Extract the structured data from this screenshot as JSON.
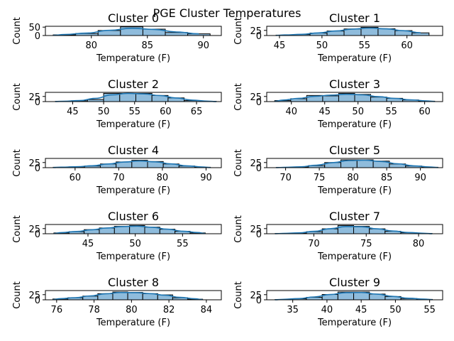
{
  "chart_data": {
    "type": "histogram-grid",
    "title": "PGE Cluster Temperatures",
    "xlabel": "Temperature (F)",
    "ylabel": "Count",
    "colors": {
      "bar": "#8fbcdc",
      "edge": "#000000",
      "kde": "#1f77b4"
    },
    "panels": [
      {
        "title": "Cluster 0",
        "xlim": [
          75.9,
          91.6
        ],
        "ylim": [
          0,
          55
        ],
        "xticks": [
          80,
          85,
          90
        ],
        "yticks": [
          0,
          50
        ],
        "bins": [
          76.6,
          78.6,
          80.6,
          82.6,
          84.6,
          86.6,
          88.6,
          90.6
        ],
        "counts": [
          4,
          12,
          30,
          52,
          38,
          18,
          10,
          3
        ]
      },
      {
        "title": "Cluster 1",
        "xlim": [
          43.5,
          64.2
        ],
        "ylim": [
          0,
          45
        ],
        "xticks": [
          45,
          50,
          55,
          60
        ],
        "yticks": [
          0,
          25
        ],
        "bins": [
          44.6,
          46.6,
          48.6,
          50.6,
          52.6,
          54.6,
          56.6,
          58.6,
          60.6,
          62.6
        ],
        "counts": [
          2,
          5,
          12,
          22,
          32,
          40,
          33,
          24,
          13,
          5
        ]
      },
      {
        "title": "Cluster 2",
        "xlim": [
          40.6,
          69.0
        ],
        "ylim": [
          0,
          45
        ],
        "xticks": [
          45,
          50,
          55,
          60,
          65
        ],
        "yticks": [
          0,
          25
        ],
        "bins": [
          42.2,
          44.8,
          47.4,
          50.0,
          52.6,
          55.2,
          57.8,
          60.4,
          63.0,
          65.6,
          68.2
        ],
        "counts": [
          1,
          4,
          10,
          40,
          40,
          40,
          30,
          18,
          5,
          1
        ]
      },
      {
        "title": "Cluster 3",
        "xlim": [
          36.3,
          62.7
        ],
        "ylim": [
          0,
          45
        ],
        "xticks": [
          40,
          45,
          50,
          55,
          60
        ],
        "yticks": [
          0,
          25
        ],
        "bins": [
          37.5,
          39.9,
          42.3,
          44.7,
          47.1,
          49.5,
          51.9,
          54.3,
          56.7,
          59.1,
          61.5
        ],
        "counts": [
          5,
          14,
          30,
          28,
          40,
          35,
          22,
          16,
          8,
          2
        ]
      },
      {
        "title": "Cluster 4",
        "xlim": [
          53.2,
          93.5
        ],
        "ylim": [
          0,
          45
        ],
        "xticks": [
          60,
          70,
          80,
          90
        ],
        "yticks": [
          0,
          25
        ],
        "bins": [
          55.0,
          58.6,
          62.2,
          65.8,
          69.4,
          73.0,
          76.6,
          80.2,
          83.8,
          87.4,
          91.0
        ],
        "counts": [
          2,
          4,
          8,
          18,
          28,
          36,
          30,
          18,
          8,
          2
        ]
      },
      {
        "title": "Cluster 5",
        "xlim": [
          67.2,
          93.3
        ],
        "ylim": [
          0,
          45
        ],
        "xticks": [
          70,
          75,
          80,
          85,
          90
        ],
        "yticks": [
          0,
          25
        ],
        "bins": [
          68.6,
          71.0,
          73.4,
          75.8,
          78.2,
          80.6,
          83.0,
          85.4,
          87.8,
          90.2,
          92.6
        ],
        "counts": [
          1,
          3,
          10,
          25,
          38,
          38,
          32,
          18,
          8,
          2
        ]
      },
      {
        "title": "Cluster 6",
        "xlim": [
          40.5,
          59.1
        ],
        "ylim": [
          0,
          45
        ],
        "xticks": [
          45,
          50,
          55
        ],
        "yticks": [
          0,
          25
        ],
        "bins": [
          41.4,
          43.0,
          44.6,
          46.2,
          47.8,
          49.4,
          51.0,
          52.6,
          54.2,
          55.8,
          57.4
        ],
        "counts": [
          4,
          10,
          20,
          28,
          36,
          40,
          32,
          22,
          12,
          4
        ]
      },
      {
        "title": "Cluster 7",
        "xlim": [
          65.5,
          82.3
        ],
        "ylim": [
          0,
          45
        ],
        "xticks": [
          70,
          75,
          80
        ],
        "yticks": [
          0,
          25
        ],
        "bins": [
          66.3,
          67.8,
          69.3,
          70.8,
          72.3,
          73.8,
          75.3,
          76.8,
          78.3,
          79.8,
          81.3
        ],
        "counts": [
          1,
          3,
          10,
          24,
          40,
          36,
          24,
          12,
          5,
          1
        ]
      },
      {
        "title": "Cluster 8",
        "xlim": [
          75.4,
          84.8
        ],
        "ylim": [
          0,
          45
        ],
        "xticks": [
          76,
          78,
          80,
          82,
          84
        ],
        "yticks": [
          0,
          25
        ],
        "bins": [
          75.8,
          76.6,
          77.4,
          78.2,
          79.0,
          79.8,
          80.6,
          81.4,
          82.2,
          83.0,
          83.8
        ],
        "counts": [
          4,
          10,
          18,
          30,
          38,
          36,
          30,
          24,
          10,
          3
        ]
      },
      {
        "title": "Cluster 9",
        "xlim": [
          31.2,
          56.9
        ],
        "ylim": [
          0,
          45
        ],
        "xticks": [
          35,
          40,
          45,
          50,
          55
        ],
        "yticks": [
          0,
          25
        ],
        "bins": [
          32.4,
          34.7,
          37.0,
          39.3,
          41.6,
          43.9,
          46.2,
          48.5,
          50.8,
          53.1,
          55.4
        ],
        "counts": [
          1,
          5,
          12,
          26,
          38,
          38,
          28,
          16,
          6,
          2
        ]
      }
    ]
  }
}
